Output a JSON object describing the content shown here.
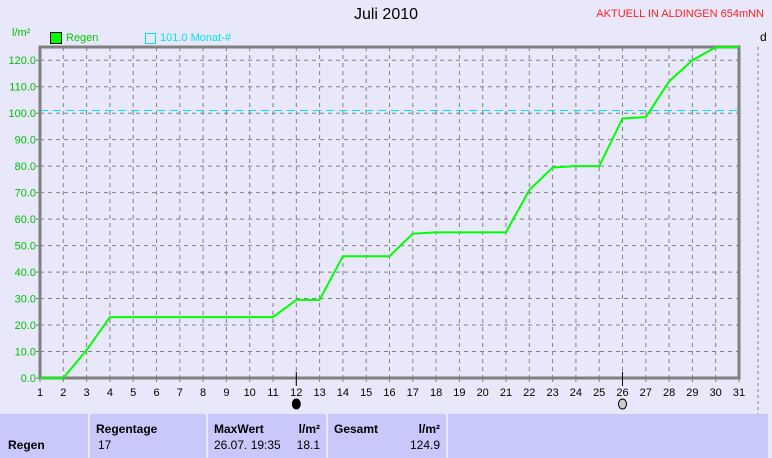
{
  "title": "Juli 2010",
  "station": "AKTUELL IN ALDINGEN 654mNN",
  "right_panel_label": "d",
  "chart_data": {
    "type": "line",
    "title": "Juli 2010",
    "ylabel": "l/m²",
    "xlabel": "",
    "xlim": [
      1,
      31
    ],
    "ylim": [
      0,
      125
    ],
    "grid": true,
    "legend_placement": "top-left",
    "x_ticks": [
      1,
      2,
      3,
      4,
      5,
      6,
      7,
      8,
      9,
      10,
      11,
      12,
      13,
      14,
      15,
      16,
      17,
      18,
      19,
      20,
      21,
      22,
      23,
      24,
      25,
      26,
      27,
      28,
      29,
      30,
      31
    ],
    "y_ticks": [
      0,
      10,
      20,
      30,
      40,
      50,
      60,
      70,
      80,
      90,
      100,
      110,
      120
    ],
    "y_tick_labels": [
      "0.0",
      "10.0",
      "20.0",
      "30.0",
      "40.0",
      "50.0",
      "60.0",
      "70.0",
      "80.0",
      "90.0",
      "100.0",
      "110.0",
      "120.0"
    ],
    "series": [
      {
        "name": "Regen",
        "color": "#00ff00",
        "x": [
          1,
          2,
          3,
          4,
          5,
          6,
          7,
          8,
          9,
          10,
          11,
          12,
          13,
          14,
          15,
          16,
          17,
          18,
          19,
          20,
          21,
          22,
          23,
          24,
          25,
          26,
          27,
          28,
          29,
          30,
          31
        ],
        "y": [
          0,
          0,
          10.5,
          23,
          23,
          23,
          23,
          23,
          23,
          23,
          23,
          29.5,
          29.5,
          46,
          46,
          46,
          54.5,
          55,
          55,
          55,
          55,
          71,
          79.5,
          80,
          80,
          98,
          98.5,
          112,
          120,
          124.9,
          124.9
        ]
      }
    ],
    "reference_line": {
      "name": "101.0 Monat-#",
      "value": 101.0,
      "color": "#00e0f0"
    },
    "markers": [
      {
        "day": 12,
        "icon": "full-moon-icon"
      },
      {
        "day": 26,
        "icon": "new-moon-icon"
      }
    ]
  },
  "table": {
    "row_label": "Regen",
    "regentage_header": "Regentage",
    "regentage_value": "17",
    "maxwert_header": "MaxWert",
    "maxwert_unit": "l/m²",
    "maxwert_date": "26.07.  19:35",
    "maxwert_value": "18.1",
    "gesamt_header": "Gesamt",
    "gesamt_unit": "l/m²",
    "gesamt_value": "124.9"
  }
}
